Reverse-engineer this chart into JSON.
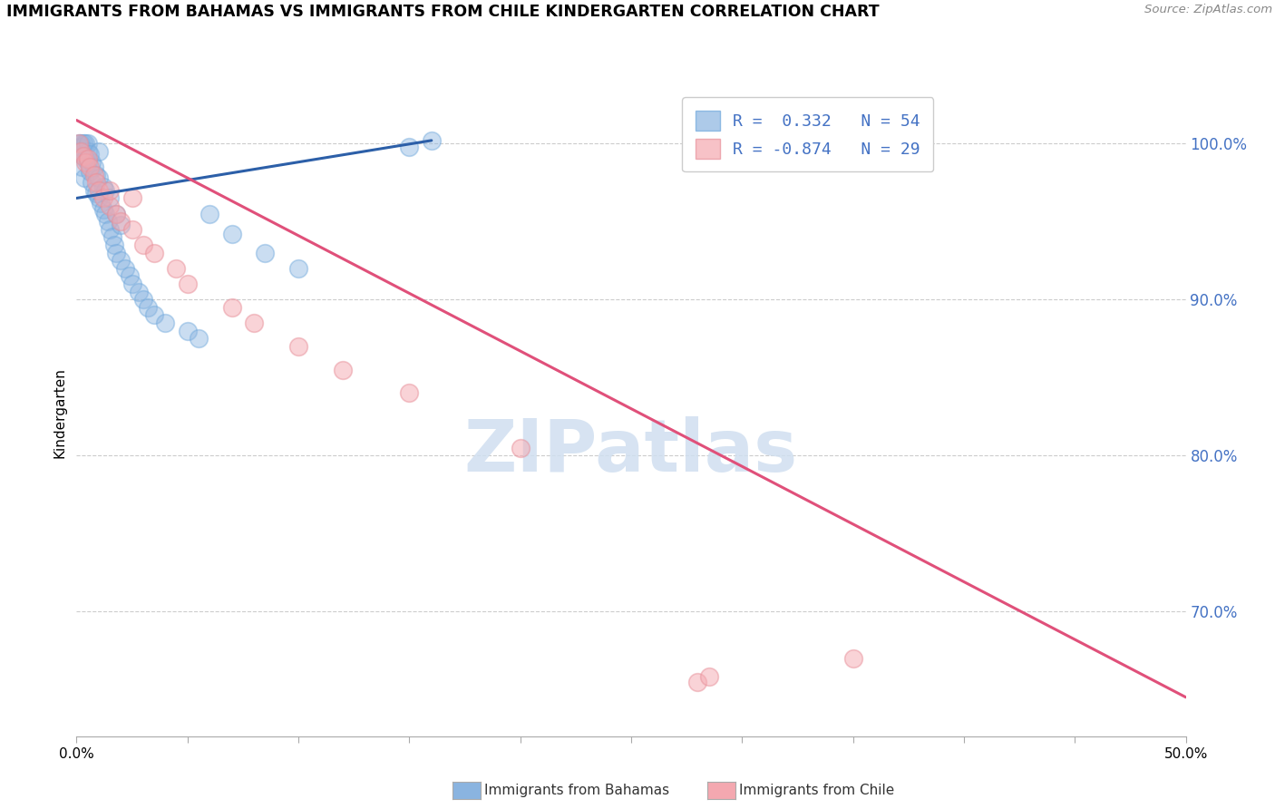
{
  "title": "IMMIGRANTS FROM BAHAMAS VS IMMIGRANTS FROM CHILE KINDERGARTEN CORRELATION CHART",
  "source": "Source: ZipAtlas.com",
  "ylabel": "Kindergarten",
  "ytick_vals": [
    70.0,
    80.0,
    90.0,
    100.0
  ],
  "xmin": 0.0,
  "xmax": 50.0,
  "ymin": 62.0,
  "ymax": 103.5,
  "bahamas_R": 0.332,
  "bahamas_N": 54,
  "chile_R": -0.874,
  "chile_N": 29,
  "bahamas_color": "#8ab4e0",
  "chile_color": "#f4a8b0",
  "bahamas_edge_color": "#6fa8dc",
  "chile_edge_color": "#e8909a",
  "trendline_bahamas_color": "#2c5fa8",
  "trendline_chile_color": "#e0507a",
  "watermark": "ZIPatlas",
  "watermark_color": "#d0dff0",
  "grid_color": "#cccccc",
  "axis_label_color": "#4472c4",
  "bahamas_trend_x0": 0.0,
  "bahamas_trend_y0": 96.5,
  "bahamas_trend_x1": 16.0,
  "bahamas_trend_y1": 100.2,
  "chile_trend_x0": 0.0,
  "chile_trend_y0": 101.5,
  "chile_trend_x1": 50.0,
  "chile_trend_y1": 64.5,
  "bahamas_scatter_x": [
    0.1,
    0.15,
    0.2,
    0.2,
    0.25,
    0.3,
    0.3,
    0.35,
    0.4,
    0.4,
    0.5,
    0.5,
    0.5,
    0.6,
    0.6,
    0.7,
    0.7,
    0.8,
    0.8,
    0.9,
    0.9,
    1.0,
    1.0,
    1.0,
    1.1,
    1.2,
    1.2,
    1.3,
    1.3,
    1.4,
    1.5,
    1.5,
    1.6,
    1.7,
    1.8,
    1.8,
    2.0,
    2.0,
    2.2,
    2.4,
    2.5,
    2.8,
    3.0,
    3.2,
    3.5,
    4.0,
    5.0,
    5.5,
    6.0,
    7.0,
    8.5,
    10.0,
    15.0,
    16.0
  ],
  "bahamas_scatter_y": [
    100.0,
    99.5,
    99.8,
    100.0,
    98.5,
    99.2,
    100.0,
    97.8,
    99.0,
    100.0,
    98.8,
    99.5,
    100.0,
    98.2,
    99.3,
    97.5,
    98.8,
    97.0,
    98.5,
    96.8,
    98.0,
    96.5,
    97.8,
    99.5,
    96.2,
    95.8,
    97.2,
    95.5,
    97.0,
    95.0,
    94.5,
    96.5,
    94.0,
    93.5,
    93.0,
    95.5,
    92.5,
    94.8,
    92.0,
    91.5,
    91.0,
    90.5,
    90.0,
    89.5,
    89.0,
    88.5,
    88.0,
    87.5,
    95.5,
    94.2,
    93.0,
    92.0,
    99.8,
    100.2
  ],
  "chile_scatter_x": [
    0.1,
    0.2,
    0.3,
    0.4,
    0.5,
    0.6,
    0.8,
    0.9,
    1.0,
    1.2,
    1.5,
    1.5,
    1.8,
    2.0,
    2.5,
    2.5,
    3.0,
    3.5,
    4.5,
    5.0,
    7.0,
    8.0,
    10.0,
    12.0,
    15.0,
    20.0,
    28.0,
    28.5,
    35.0
  ],
  "chile_scatter_y": [
    100.0,
    99.5,
    99.2,
    98.8,
    99.0,
    98.5,
    98.0,
    97.5,
    97.0,
    96.5,
    96.0,
    97.0,
    95.5,
    95.0,
    94.5,
    96.5,
    93.5,
    93.0,
    92.0,
    91.0,
    89.5,
    88.5,
    87.0,
    85.5,
    84.0,
    80.5,
    65.5,
    65.8,
    67.0
  ]
}
